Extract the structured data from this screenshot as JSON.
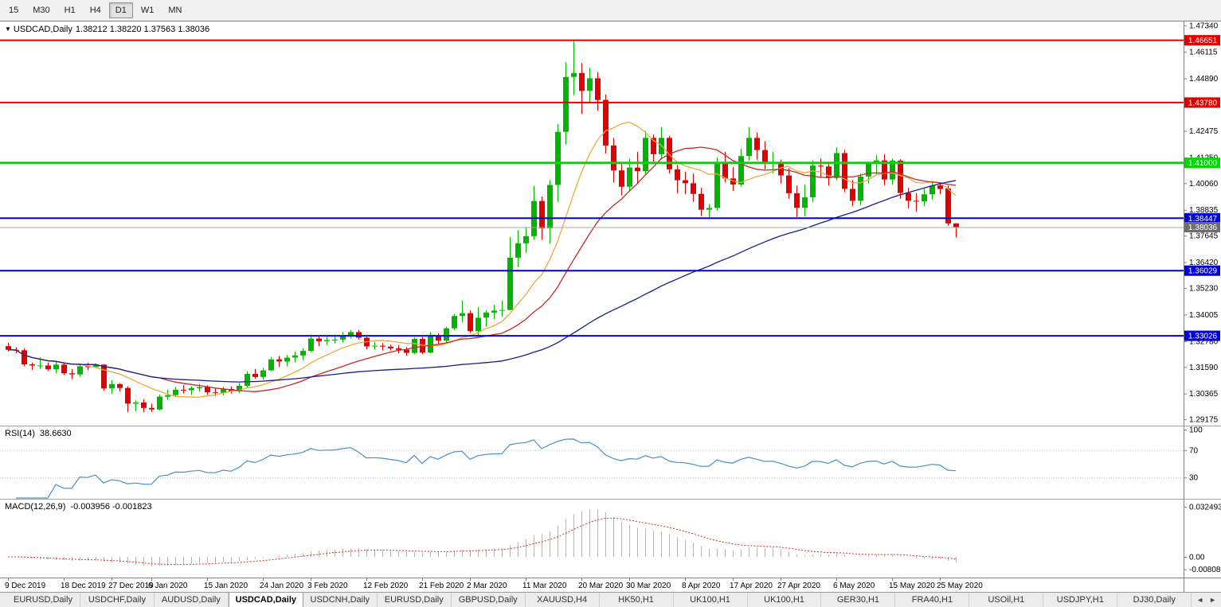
{
  "toolbar": {
    "timeframes": [
      {
        "label": "15",
        "active": false
      },
      {
        "label": "M30",
        "active": false
      },
      {
        "label": "H1",
        "active": false
      },
      {
        "label": "H4",
        "active": false
      },
      {
        "label": "D1",
        "active": true
      },
      {
        "label": "W1",
        "active": false
      },
      {
        "label": "MN",
        "active": false
      }
    ]
  },
  "chart": {
    "dropdown_icon": "▼",
    "symbol_label": "USDCAD,Daily",
    "ohlc_text": "1.38212 1.38220 1.37563 1.38036"
  },
  "chart_data": {
    "type": "candlestick",
    "symbol": "USDCAD",
    "period": "Daily",
    "title": "USDCAD,Daily",
    "current_bar": {
      "open": "1.38212",
      "high": "1.38220",
      "low": "1.37563",
      "close": "1.38036"
    },
    "colors": {
      "bull": "#00b400",
      "bear": "#e00000",
      "axis_text": "#000000",
      "separator": "#808080"
    },
    "price_range": {
      "top": 1.4748,
      "bottom": 1.2896
    },
    "price_axis_labels": [
      "1.47340",
      "1.46115",
      "1.44890",
      "1.43665",
      "1.42475",
      "1.41250",
      "1.40060",
      "1.38835",
      "1.37645",
      "1.36420",
      "1.35230",
      "1.34005",
      "1.32780",
      "1.31590",
      "1.30365",
      "1.29175"
    ],
    "hlines": [
      {
        "price": 1.46651,
        "label": "1.46651",
        "color": "#e00000",
        "width": 2
      },
      {
        "price": 1.4378,
        "label": "1.43780",
        "color": "#e00000",
        "width": 2
      },
      {
        "price": 1.41,
        "label": "1.41000",
        "color": "#00d800",
        "width": 3
      },
      {
        "price": 1.38447,
        "label": "1.38447",
        "color": "#0000d8",
        "width": 2
      },
      {
        "price": 1.36029,
        "label": "1.36029",
        "color": "#0000d8",
        "width": 2
      },
      {
        "price": 1.33026,
        "label": "1.33026",
        "color": "#0000d8",
        "width": 2
      }
    ],
    "current_price": {
      "price": 1.38036,
      "label": "1.38036",
      "color": "#6e6e6e",
      "line_color": "#a8a8a8"
    },
    "ma_lines": [
      {
        "period": 10,
        "color": "#efa83a"
      },
      {
        "period": 20,
        "color": "#c62828"
      },
      {
        "period": 60,
        "color": "#1b1b8f"
      }
    ],
    "date_labels": [
      {
        "text": "9 Dec 2019",
        "i": 0
      },
      {
        "text": "18 Dec 2019",
        "i": 7
      },
      {
        "text": "27 Dec 2019",
        "i": 13
      },
      {
        "text": "6 Jan 2020",
        "i": 18
      },
      {
        "text": "15 Jan 2020",
        "i": 25
      },
      {
        "text": "24 Jan 2020",
        "i": 32
      },
      {
        "text": "3 Feb 2020",
        "i": 38
      },
      {
        "text": "12 Feb 2020",
        "i": 45
      },
      {
        "text": "21 Feb 2020",
        "i": 52
      },
      {
        "text": "2 Mar 2020",
        "i": 58
      },
      {
        "text": "11 Mar 2020",
        "i": 65
      },
      {
        "text": "20 Mar 2020",
        "i": 72
      },
      {
        "text": "30 Mar 2020",
        "i": 78
      },
      {
        "text": "8 Apr 2020",
        "i": 85
      },
      {
        "text": "17 Apr 2020",
        "i": 91
      },
      {
        "text": "27 Apr 2020",
        "i": 97
      },
      {
        "text": "6 May 2020",
        "i": 104
      },
      {
        "text": "15 May 2020",
        "i": 111
      },
      {
        "text": "25 May 2020",
        "i": 117
      }
    ],
    "candles": [
      [
        1.3255,
        1.327,
        1.323,
        1.3238
      ],
      [
        1.3238,
        1.325,
        1.3222,
        1.3236
      ],
      [
        1.3236,
        1.3245,
        1.3162,
        1.3171
      ],
      [
        1.3171,
        1.318,
        1.3145,
        1.3166
      ],
      [
        1.3166,
        1.3203,
        1.3151,
        1.3166
      ],
      [
        1.3166,
        1.318,
        1.314,
        1.3148
      ],
      [
        1.3148,
        1.3186,
        1.313,
        1.317
      ],
      [
        1.317,
        1.318,
        1.3122,
        1.313
      ],
      [
        1.313,
        1.315,
        1.3103,
        1.3125
      ],
      [
        1.3125,
        1.3175,
        1.3115,
        1.3162
      ],
      [
        1.3162,
        1.318,
        1.3145,
        1.3159
      ],
      [
        1.3159,
        1.3175,
        1.3155,
        1.317
      ],
      [
        1.317,
        1.3172,
        1.305,
        1.306
      ],
      [
        1.306,
        1.3098,
        1.3035,
        1.308
      ],
      [
        1.308,
        1.3085,
        1.3045,
        1.3062
      ],
      [
        1.3062,
        1.307,
        1.2951,
        1.299
      ],
      [
        1.299,
        1.3005,
        1.2955,
        1.2995
      ],
      [
        1.2995,
        1.301,
        1.295,
        1.297
      ],
      [
        1.297,
        1.299,
        1.2952,
        1.2963
      ],
      [
        1.2963,
        1.3032,
        1.2958,
        1.3022
      ],
      [
        1.3022,
        1.3055,
        1.3007,
        1.3029
      ],
      [
        1.3029,
        1.3065,
        1.3022,
        1.3054
      ],
      [
        1.3054,
        1.3075,
        1.3037,
        1.3052
      ],
      [
        1.3052,
        1.307,
        1.303,
        1.3061
      ],
      [
        1.3061,
        1.308,
        1.3045,
        1.3066
      ],
      [
        1.3066,
        1.3075,
        1.303,
        1.3042
      ],
      [
        1.3042,
        1.306,
        1.3025,
        1.304
      ],
      [
        1.304,
        1.3068,
        1.3028,
        1.3057
      ],
      [
        1.3057,
        1.307,
        1.3037,
        1.3047
      ],
      [
        1.3047,
        1.3085,
        1.304,
        1.3072
      ],
      [
        1.3072,
        1.314,
        1.3065,
        1.3127
      ],
      [
        1.3127,
        1.315,
        1.3105,
        1.3113
      ],
      [
        1.3113,
        1.3155,
        1.31,
        1.3143
      ],
      [
        1.3143,
        1.3205,
        1.314,
        1.3194
      ],
      [
        1.3194,
        1.321,
        1.316,
        1.3184
      ],
      [
        1.3184,
        1.3215,
        1.3162,
        1.3202
      ],
      [
        1.3202,
        1.323,
        1.318,
        1.3212
      ],
      [
        1.3212,
        1.3245,
        1.319,
        1.3233
      ],
      [
        1.3233,
        1.3302,
        1.3228,
        1.329
      ],
      [
        1.329,
        1.33,
        1.3255,
        1.3278
      ],
      [
        1.3278,
        1.33,
        1.3262,
        1.3283
      ],
      [
        1.3283,
        1.33,
        1.3267,
        1.3285
      ],
      [
        1.3285,
        1.332,
        1.3272,
        1.3304
      ],
      [
        1.3304,
        1.333,
        1.329,
        1.332
      ],
      [
        1.332,
        1.333,
        1.3285,
        1.3294
      ],
      [
        1.3294,
        1.33,
        1.324,
        1.3254
      ],
      [
        1.3254,
        1.3275,
        1.324,
        1.3257
      ],
      [
        1.3257,
        1.327,
        1.3235,
        1.3253
      ],
      [
        1.3253,
        1.3262,
        1.3235,
        1.3245
      ],
      [
        1.3245,
        1.326,
        1.3222,
        1.3238
      ],
      [
        1.3238,
        1.325,
        1.321,
        1.3224
      ],
      [
        1.3224,
        1.3295,
        1.3218,
        1.3288
      ],
      [
        1.3288,
        1.3298,
        1.3218,
        1.3225
      ],
      [
        1.3225,
        1.332,
        1.3222,
        1.3305
      ],
      [
        1.3305,
        1.3315,
        1.3262,
        1.328
      ],
      [
        1.328,
        1.3345,
        1.327,
        1.3337
      ],
      [
        1.3337,
        1.3405,
        1.333,
        1.3394
      ],
      [
        1.3394,
        1.3465,
        1.3365,
        1.3407
      ],
      [
        1.3407,
        1.342,
        1.3315,
        1.3324
      ],
      [
        1.3324,
        1.3435,
        1.3305,
        1.3386
      ],
      [
        1.3386,
        1.342,
        1.3345,
        1.341
      ],
      [
        1.341,
        1.3445,
        1.338,
        1.3419
      ],
      [
        1.3419,
        1.3465,
        1.339,
        1.3422
      ],
      [
        1.3422,
        1.3758,
        1.342,
        1.3663
      ],
      [
        1.3663,
        1.379,
        1.362,
        1.3729
      ],
      [
        1.3729,
        1.3805,
        1.3685,
        1.3762
      ],
      [
        1.3762,
        1.3995,
        1.3745,
        1.3924
      ],
      [
        1.3924,
        1.3945,
        1.3745,
        1.3798
      ],
      [
        1.3798,
        1.402,
        1.3727,
        1.3998
      ],
      [
        1.3998,
        1.428,
        1.392,
        1.4243
      ],
      [
        1.4243,
        1.4563,
        1.4184,
        1.4496
      ],
      [
        1.4496,
        1.4668,
        1.4412,
        1.4514
      ],
      [
        1.4514,
        1.456,
        1.4325,
        1.4432
      ],
      [
        1.4432,
        1.4538,
        1.4378,
        1.449
      ],
      [
        1.449,
        1.4518,
        1.434,
        1.439
      ],
      [
        1.439,
        1.4415,
        1.4143,
        1.418
      ],
      [
        1.418,
        1.4215,
        1.401,
        1.4065
      ],
      [
        1.4065,
        1.4105,
        1.395,
        1.399
      ],
      [
        1.399,
        1.412,
        1.397,
        1.4078
      ],
      [
        1.4078,
        1.4151,
        1.4005,
        1.4062
      ],
      [
        1.4062,
        1.4246,
        1.4045,
        1.4215
      ],
      [
        1.4215,
        1.423,
        1.4105,
        1.414
      ],
      [
        1.414,
        1.4265,
        1.4115,
        1.4215
      ],
      [
        1.4215,
        1.4225,
        1.405,
        1.407
      ],
      [
        1.407,
        1.409,
        1.396,
        1.402
      ],
      [
        1.402,
        1.406,
        1.3955,
        1.4006
      ],
      [
        1.4006,
        1.405,
        1.392,
        1.3957
      ],
      [
        1.3957,
        1.3985,
        1.3855,
        1.3884
      ],
      [
        1.3884,
        1.391,
        1.385,
        1.3892
      ],
      [
        1.3892,
        1.4125,
        1.388,
        1.4098
      ],
      [
        1.4098,
        1.415,
        1.401,
        1.4028
      ],
      [
        1.4028,
        1.408,
        1.397,
        1.4
      ],
      [
        1.4,
        1.4165,
        1.399,
        1.4131
      ],
      [
        1.4131,
        1.4265,
        1.411,
        1.4215
      ],
      [
        1.4215,
        1.424,
        1.4115,
        1.4159
      ],
      [
        1.4159,
        1.42,
        1.407,
        1.4097
      ],
      [
        1.4097,
        1.415,
        1.405,
        1.4103
      ],
      [
        1.4103,
        1.4115,
        1.4005,
        1.4042
      ],
      [
        1.4042,
        1.4075,
        1.3935,
        1.396
      ],
      [
        1.396,
        1.3995,
        1.385,
        1.3893
      ],
      [
        1.3893,
        1.4,
        1.3855,
        1.3941
      ],
      [
        1.3941,
        1.4112,
        1.392,
        1.4087
      ],
      [
        1.4087,
        1.412,
        1.4035,
        1.4083
      ],
      [
        1.4083,
        1.4105,
        1.3995,
        1.403
      ],
      [
        1.403,
        1.4172,
        1.402,
        1.4145
      ],
      [
        1.4145,
        1.416,
        1.3965,
        1.398
      ],
      [
        1.398,
        1.402,
        1.39,
        1.3925
      ],
      [
        1.3925,
        1.405,
        1.3905,
        1.4037
      ],
      [
        1.4037,
        1.4105,
        1.4005,
        1.4098
      ],
      [
        1.4098,
        1.4135,
        1.4045,
        1.4111
      ],
      [
        1.4111,
        1.414,
        1.3997,
        1.4023
      ],
      [
        1.4023,
        1.412,
        1.4,
        1.411
      ],
      [
        1.411,
        1.4118,
        1.3935,
        1.3961
      ],
      [
        1.3961,
        1.3985,
        1.389,
        1.3925
      ],
      [
        1.3925,
        1.396,
        1.3875,
        1.3922
      ],
      [
        1.3922,
        1.398,
        1.39,
        1.3955
      ],
      [
        1.3955,
        1.4015,
        1.393,
        1.3996
      ],
      [
        1.3996,
        1.401,
        1.3955,
        1.398
      ],
      [
        1.3982,
        1.3996,
        1.381,
        1.3821
      ],
      [
        1.3821,
        1.3822,
        1.3756,
        1.3804
      ]
    ],
    "rsi": {
      "name": "RSI(14)",
      "value": "38.6630",
      "period": 14,
      "color": "#4a90c8",
      "axis": [
        {
          "v": 100,
          "t": "100"
        },
        {
          "v": 70,
          "t": "70"
        },
        {
          "v": 30,
          "t": "30"
        }
      ],
      "level_lines": [
        70,
        30
      ]
    },
    "macd": {
      "name": "MACD(12,26,9)",
      "values_text": "-0.003956 -0.001823",
      "fast": 12,
      "slow": 26,
      "signal": 9,
      "hist_color": "#b4b4b4",
      "signal_color": "#d32f2f",
      "axis": [
        {
          "v": 0.032493,
          "t": "0.032493"
        },
        {
          "v": 0,
          "t": "0.00"
        },
        {
          "v": -0.008086,
          "t": "-0.008086"
        }
      ]
    }
  },
  "tabs": {
    "items": [
      "EURUSD,Daily",
      "USDCHF,Daily",
      "AUDUSD,Daily",
      "USDCAD,Daily",
      "USDCNH,Daily",
      "EURUSD,Daily",
      "GBPUSD,Daily",
      "XAUUSD,H4",
      "HK50,H1",
      "UK100,H1",
      "UK100,H1",
      "GER30,H1",
      "FRA40,H1",
      "USOil,H1",
      "USDJPY,H1",
      "DJ30,Daily"
    ],
    "active_index": 3,
    "scroll_left": "◄",
    "scroll_right": "►"
  }
}
